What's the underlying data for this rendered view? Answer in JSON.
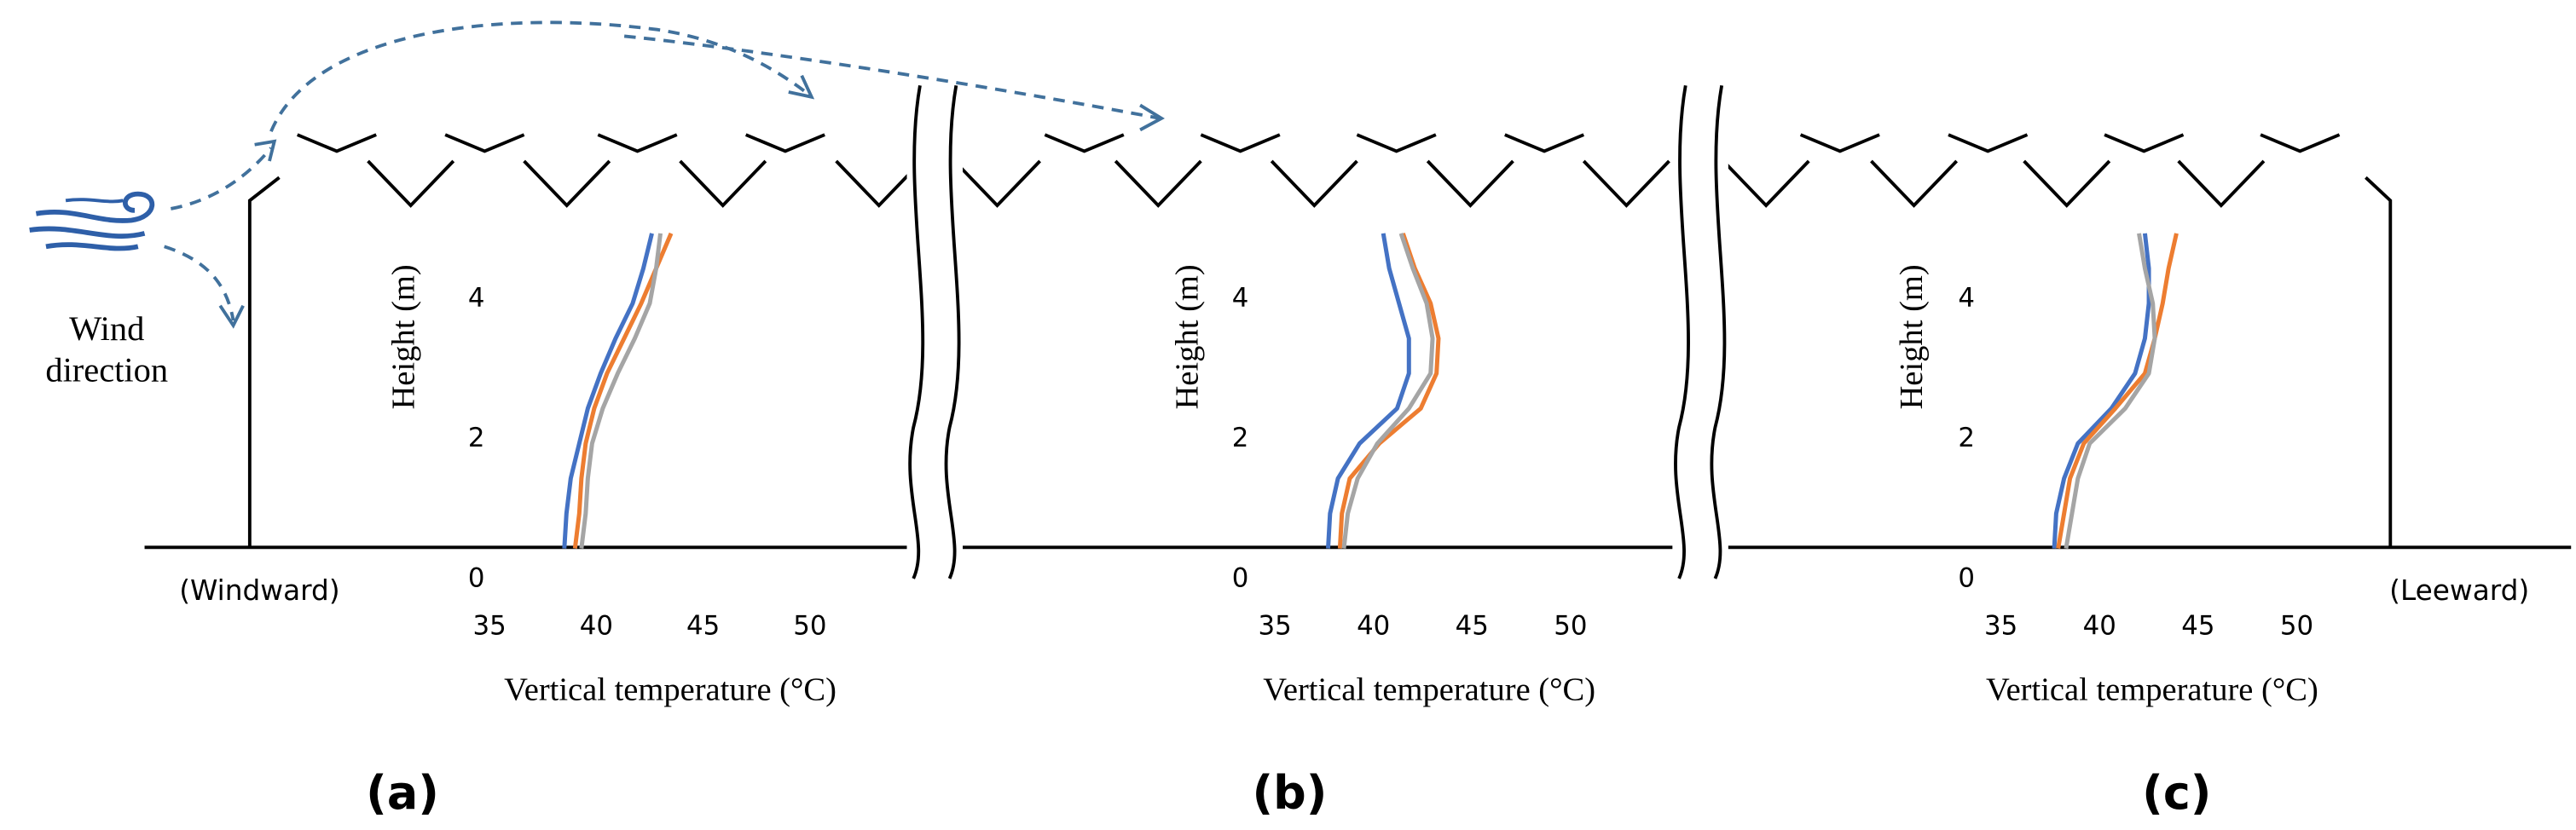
{
  "diagram": {
    "wind_label": [
      "Wind",
      "direction"
    ],
    "windward": "(Windward)",
    "leeward": "(Leeward)"
  },
  "chart_data": [
    {
      "type": "line",
      "panel": "(a)",
      "xlabel": "Vertical temperature (°C)",
      "ylabel": "Height  (m)",
      "heights": [
        0.5,
        1,
        1.5,
        2,
        2.5,
        3,
        3.5,
        4,
        4.5,
        5
      ],
      "series": [
        {
          "color": "#4472c4",
          "values": [
            38.5,
            38.6,
            38.8,
            39.2,
            39.6,
            40.2,
            40.9,
            41.7,
            42.2,
            42.6
          ]
        },
        {
          "color": "#ed7d31",
          "values": [
            39.0,
            39.2,
            39.3,
            39.5,
            39.9,
            40.5,
            41.3,
            42.1,
            42.8,
            43.5
          ]
        },
        {
          "color": "#a5a5a5",
          "values": [
            39.3,
            39.5,
            39.6,
            39.8,
            40.3,
            41.0,
            41.8,
            42.5,
            42.8,
            43.0
          ]
        }
      ],
      "xlim": [
        35,
        50
      ],
      "ylim": [
        0,
        5
      ],
      "xticks": [
        35,
        40,
        45,
        50
      ],
      "yticks": [
        0,
        2,
        4
      ]
    },
    {
      "type": "line",
      "panel": "(b)",
      "xlabel": "Vertical temperature (°C)",
      "ylabel": "Height  (m)",
      "heights": [
        0.5,
        1,
        1.5,
        2,
        2.5,
        3,
        3.5,
        4,
        4.5,
        5
      ],
      "series": [
        {
          "color": "#4472c4",
          "values": [
            37.7,
            37.8,
            38.2,
            39.3,
            41.2,
            41.8,
            41.8,
            41.3,
            40.8,
            40.5
          ]
        },
        {
          "color": "#ed7d31",
          "values": [
            38.3,
            38.4,
            38.8,
            40.3,
            42.4,
            43.2,
            43.3,
            42.9,
            42.1,
            41.5
          ]
        },
        {
          "color": "#a5a5a5",
          "values": [
            38.5,
            38.7,
            39.2,
            40.2,
            41.8,
            42.9,
            43.0,
            42.7,
            42.0,
            41.4
          ]
        }
      ],
      "xlim": [
        35,
        50
      ],
      "ylim": [
        0,
        5
      ],
      "xticks": [
        35,
        40,
        45,
        50
      ],
      "yticks": [
        0,
        2,
        4
      ]
    },
    {
      "type": "line",
      "panel": "(c)",
      "xlabel": "Vertical temperature (°C)",
      "ylabel": "Height  (m)",
      "heights": [
        0.5,
        1,
        1.5,
        2,
        2.5,
        3,
        3.5,
        4,
        4.5,
        5
      ],
      "series": [
        {
          "color": "#4472c4",
          "values": [
            37.7,
            37.8,
            38.2,
            38.9,
            40.6,
            41.8,
            42.3,
            42.5,
            42.5,
            42.3
          ]
        },
        {
          "color": "#ed7d31",
          "values": [
            37.9,
            38.2,
            38.5,
            39.2,
            40.8,
            42.3,
            42.8,
            43.2,
            43.5,
            43.9
          ]
        },
        {
          "color": "#a5a5a5",
          "values": [
            38.3,
            38.6,
            38.9,
            39.5,
            41.3,
            42.5,
            42.8,
            42.7,
            42.3,
            42.0
          ]
        }
      ],
      "xlim": [
        35,
        50
      ],
      "ylim": [
        0,
        5
      ],
      "xticks": [
        35,
        40,
        45,
        50
      ],
      "yticks": [
        0,
        2,
        4
      ]
    }
  ]
}
